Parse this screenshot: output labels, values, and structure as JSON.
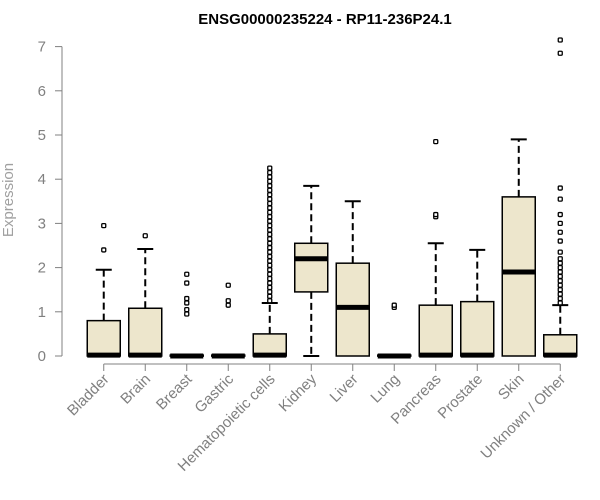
{
  "chart_data": {
    "type": "boxplot",
    "title": "ENSG00000235224 - RP11-236P24.1",
    "xlabel": "",
    "ylabel": "Expression",
    "ylim": [
      0,
      7.3
    ],
    "yticks": [
      0,
      1,
      2,
      3,
      4,
      5,
      6,
      7
    ],
    "box_color": "#ede6cc",
    "outline_color": "#000000",
    "axis_color": "#808080",
    "categories": [
      "Bladder",
      "Brain",
      "Breast",
      "Gastric",
      "Hematopoietic cells",
      "Kidney",
      "Liver",
      "Lung",
      "Pancreas",
      "Prostate",
      "Skin",
      "Unknown / Other"
    ],
    "boxes": [
      {
        "name": "Bladder",
        "q1": 0,
        "median": 0.02,
        "q3": 0.8,
        "whisker_low": 0,
        "whisker_high": 1.95,
        "outliers": [
          2.4,
          2.95
        ]
      },
      {
        "name": "Brain",
        "q1": 0,
        "median": 0.02,
        "q3": 1.08,
        "whisker_low": 0,
        "whisker_high": 2.42,
        "outliers": [
          2.72
        ]
      },
      {
        "name": "Breast",
        "q1": 0,
        "median": 0.0,
        "q3": 0.02,
        "whisker_low": 0,
        "whisker_high": 0.02,
        "outliers": [
          0.95,
          1.05,
          1.2,
          1.3,
          1.65,
          1.85
        ]
      },
      {
        "name": "Gastric",
        "q1": 0,
        "median": 0.0,
        "q3": 0.02,
        "whisker_low": 0,
        "whisker_high": 0.02,
        "outliers": [
          1.15,
          1.25,
          1.6
        ]
      },
      {
        "name": "Hematopoietic cells",
        "q1": 0,
        "median": 0.02,
        "q3": 0.5,
        "whisker_low": 0,
        "whisker_high": 1.2,
        "outliers": [
          1.25,
          1.35,
          1.45,
          1.55,
          1.65,
          1.75,
          1.85,
          1.95,
          2.05,
          2.15,
          2.25,
          2.35,
          2.45,
          2.55,
          2.65,
          2.75,
          2.85,
          2.95,
          3.05,
          3.15,
          3.25,
          3.35,
          3.45,
          3.55,
          3.65,
          3.75,
          3.85,
          3.95,
          4.05,
          4.15,
          4.25
        ]
      },
      {
        "name": "Kidney",
        "q1": 1.45,
        "median": 2.2,
        "q3": 2.55,
        "whisker_low": 0,
        "whisker_high": 3.85,
        "outliers": []
      },
      {
        "name": "Liver",
        "q1": 0,
        "median": 1.1,
        "q3": 2.1,
        "whisker_low": 0,
        "whisker_high": 3.5,
        "outliers": []
      },
      {
        "name": "Lung",
        "q1": 0,
        "median": 0.0,
        "q3": 0.02,
        "whisker_low": 0,
        "whisker_high": 0.02,
        "outliers": [
          1.1,
          1.15
        ]
      },
      {
        "name": "Pancreas",
        "q1": 0,
        "median": 0.02,
        "q3": 1.15,
        "whisker_low": 0,
        "whisker_high": 2.55,
        "outliers": [
          3.15,
          3.2,
          4.85
        ]
      },
      {
        "name": "Prostate",
        "q1": 0,
        "median": 0.02,
        "q3": 1.23,
        "whisker_low": 0,
        "whisker_high": 2.4,
        "outliers": []
      },
      {
        "name": "Skin",
        "q1": 0,
        "median": 1.9,
        "q3": 3.6,
        "whisker_low": 0,
        "whisker_high": 4.9,
        "outliers": []
      },
      {
        "name": "Unknown / Other",
        "q1": 0,
        "median": 0.02,
        "q3": 0.48,
        "whisker_low": 0,
        "whisker_high": 1.15,
        "outliers": [
          1.2,
          1.3,
          1.4,
          1.5,
          1.6,
          1.7,
          1.8,
          1.9,
          2.0,
          2.1,
          2.2,
          2.35,
          2.6,
          2.8,
          3.0,
          3.2,
          3.55,
          3.8,
          6.85,
          7.15
        ]
      }
    ]
  }
}
